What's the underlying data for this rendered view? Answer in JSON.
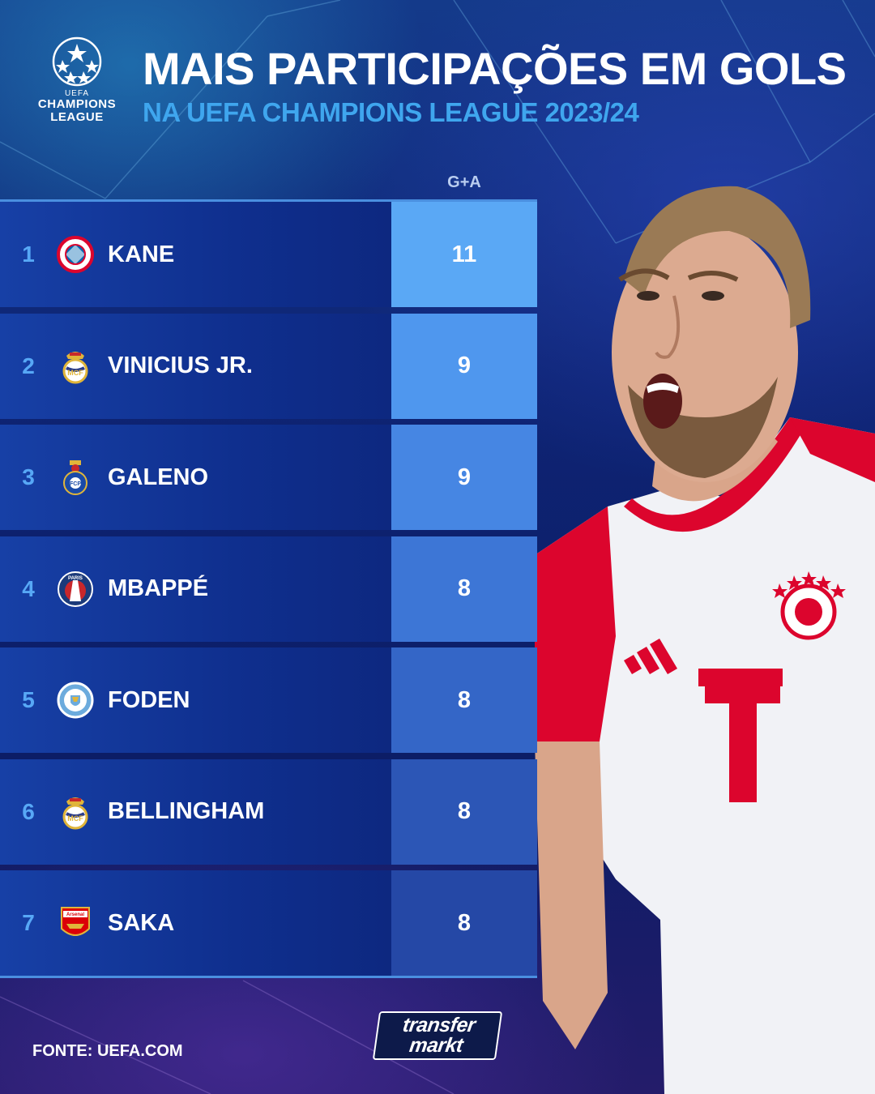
{
  "header": {
    "logo_uefa": "UEFA",
    "logo_line1": "CHAMPIONS",
    "logo_line2": "LEAGUE",
    "title": "MAIS PARTICIPAÇÕES EM GOLS",
    "subtitle": "NA UEFA CHAMPIONS LEAGUE 2023/24"
  },
  "table": {
    "column_header": "G+A",
    "rows": [
      {
        "rank": "1",
        "club_icon": "bayern-crest-icon",
        "name": "KANE",
        "value": "11",
        "value_color": "#5aa8f5"
      },
      {
        "rank": "2",
        "club_icon": "real-madrid-crest-icon",
        "name": "VINICIUS JR.",
        "value": "9",
        "value_color": "#4f97ee"
      },
      {
        "rank": "3",
        "club_icon": "porto-crest-icon",
        "name": "GALENO",
        "value": "9",
        "value_color": "#4686e3"
      },
      {
        "rank": "4",
        "club_icon": "psg-crest-icon",
        "name": "MBAPPÉ",
        "value": "8",
        "value_color": "#3d76d6"
      },
      {
        "rank": "5",
        "club_icon": "man-city-crest-icon",
        "name": "FODEN",
        "value": "8",
        "value_color": "#3466c7"
      },
      {
        "rank": "6",
        "club_icon": "real-madrid-crest-icon",
        "name": "BELLINGHAM",
        "value": "8",
        "value_color": "#2c56b6"
      },
      {
        "rank": "7",
        "club_icon": "arsenal-crest-icon",
        "name": "SAKA",
        "value": "8",
        "value_color": "#2548a6"
      }
    ]
  },
  "footer": {
    "source": "FONTE: UEFA.COM",
    "brand_line1": "transfer",
    "brand_line2": "markt"
  },
  "colors": {
    "accent_blue": "#3fa6ee",
    "rank_blue": "#57a8f6",
    "bayern_red": "#dc052d"
  }
}
